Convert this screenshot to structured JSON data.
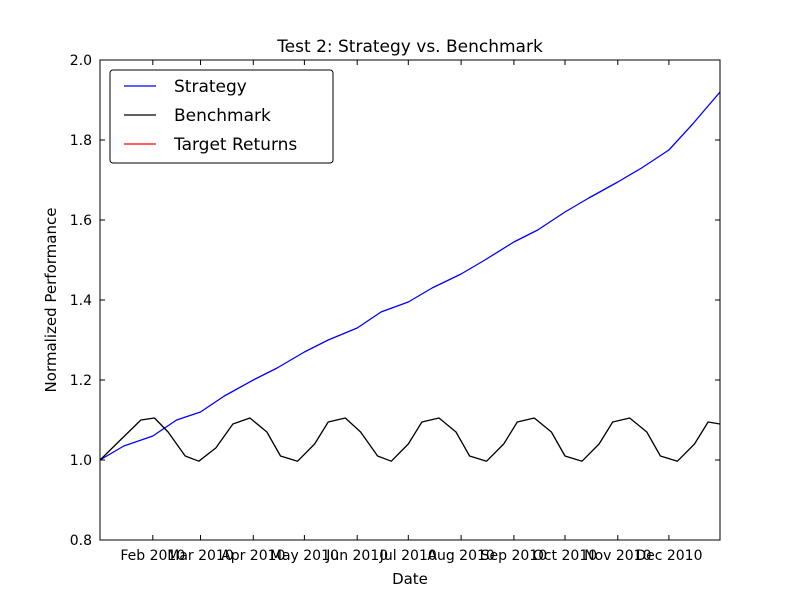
{
  "chart_data": {
    "type": "line",
    "title": "Test 2: Strategy vs. Benchmark",
    "xlabel": "Date",
    "ylabel": "Normalized Performance",
    "x_range": [
      "2010-01-01",
      "2010-12-31"
    ],
    "ylim": [
      0.8,
      2.0
    ],
    "yticks": [
      "0.8",
      "1.0",
      "1.2",
      "1.4",
      "1.6",
      "1.8",
      "2.0"
    ],
    "xticks": [
      {
        "date": "2010-02-01",
        "label": "Feb 2010"
      },
      {
        "date": "2010-03-01",
        "label": "Mar 2010"
      },
      {
        "date": "2010-04-01",
        "label": "Apr 2010"
      },
      {
        "date": "2010-05-01",
        "label": "May 2010"
      },
      {
        "date": "2010-06-01",
        "label": "Jun 2010"
      },
      {
        "date": "2010-07-01",
        "label": "Jul 2010"
      },
      {
        "date": "2010-08-01",
        "label": "Aug 2010"
      },
      {
        "date": "2010-09-01",
        "label": "Sep 2010"
      },
      {
        "date": "2010-10-01",
        "label": "Oct 2010"
      },
      {
        "date": "2010-11-01",
        "label": "Nov 2010"
      },
      {
        "date": "2010-12-01",
        "label": "Dec 2010"
      }
    ],
    "grid": false,
    "legend_position": "top-left",
    "series": [
      {
        "name": "Strategy",
        "color": "#0000ff",
        "points": [
          [
            "2010-01-01",
            1.0
          ],
          [
            "2010-01-15",
            1.035
          ],
          [
            "2010-02-01",
            1.06
          ],
          [
            "2010-02-15",
            1.1
          ],
          [
            "2010-03-01",
            1.12
          ],
          [
            "2010-03-15",
            1.16
          ],
          [
            "2010-04-01",
            1.2
          ],
          [
            "2010-04-15",
            1.23
          ],
          [
            "2010-05-01",
            1.27
          ],
          [
            "2010-05-15",
            1.3
          ],
          [
            "2010-06-01",
            1.33
          ],
          [
            "2010-06-15",
            1.37
          ],
          [
            "2010-07-01",
            1.395
          ],
          [
            "2010-07-15",
            1.43
          ],
          [
            "2010-08-01",
            1.465
          ],
          [
            "2010-08-15",
            1.5
          ],
          [
            "2010-09-01",
            1.545
          ],
          [
            "2010-09-15",
            1.575
          ],
          [
            "2010-10-01",
            1.62
          ],
          [
            "2010-10-15",
            1.655
          ],
          [
            "2010-11-01",
            1.695
          ],
          [
            "2010-11-15",
            1.73
          ],
          [
            "2010-12-01",
            1.775
          ],
          [
            "2010-12-15",
            1.84
          ],
          [
            "2010-12-31",
            1.92
          ]
        ]
      },
      {
        "name": "Benchmark",
        "color": "#000000",
        "points": [
          [
            "2010-01-01",
            1.0
          ],
          [
            "2010-01-13",
            1.05
          ],
          [
            "2010-01-25",
            1.1
          ],
          [
            "2010-02-02",
            1.105
          ],
          [
            "2010-02-10",
            1.07
          ],
          [
            "2010-02-20",
            1.01
          ],
          [
            "2010-02-28",
            0.997
          ],
          [
            "2010-03-10",
            1.03
          ],
          [
            "2010-03-20",
            1.09
          ],
          [
            "2010-03-30",
            1.105
          ],
          [
            "2010-04-09",
            1.07
          ],
          [
            "2010-04-17",
            1.01
          ],
          [
            "2010-04-27",
            0.997
          ],
          [
            "2010-05-07",
            1.04
          ],
          [
            "2010-05-15",
            1.095
          ],
          [
            "2010-05-25",
            1.105
          ],
          [
            "2010-06-03",
            1.07
          ],
          [
            "2010-06-13",
            1.01
          ],
          [
            "2010-06-21",
            0.997
          ],
          [
            "2010-07-01",
            1.04
          ],
          [
            "2010-07-09",
            1.095
          ],
          [
            "2010-07-19",
            1.105
          ],
          [
            "2010-07-29",
            1.07
          ],
          [
            "2010-08-06",
            1.01
          ],
          [
            "2010-08-16",
            0.997
          ],
          [
            "2010-08-26",
            1.04
          ],
          [
            "2010-09-03",
            1.095
          ],
          [
            "2010-09-13",
            1.105
          ],
          [
            "2010-09-23",
            1.07
          ],
          [
            "2010-10-01",
            1.01
          ],
          [
            "2010-10-11",
            0.997
          ],
          [
            "2010-10-21",
            1.04
          ],
          [
            "2010-10-29",
            1.095
          ],
          [
            "2010-11-08",
            1.105
          ],
          [
            "2010-11-18",
            1.07
          ],
          [
            "2010-11-26",
            1.01
          ],
          [
            "2010-12-06",
            0.997
          ],
          [
            "2010-12-16",
            1.04
          ],
          [
            "2010-12-24",
            1.095
          ],
          [
            "2010-12-31",
            1.09
          ]
        ]
      },
      {
        "name": "Target Returns",
        "color": "#ff0000",
        "points": []
      }
    ]
  }
}
